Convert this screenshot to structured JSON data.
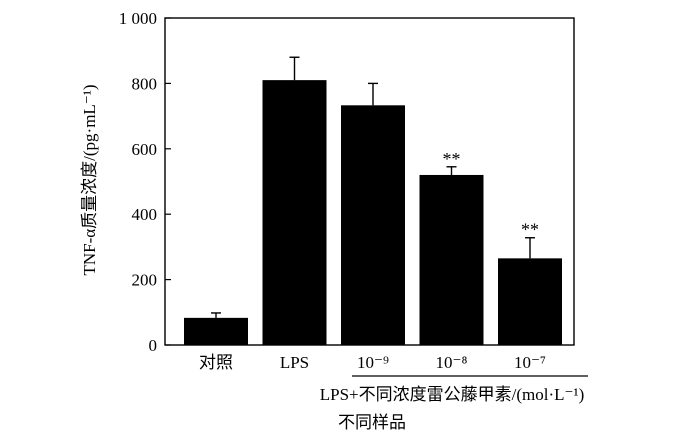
{
  "chart_data": {
    "type": "bar",
    "title": "",
    "ylabel": "TNF-α质量浓度/(pg·mL⁻¹)",
    "xlabel": "不同样品",
    "group_label": "LPS+不同浓度雷公藤甲素/(mol·L⁻¹)",
    "ylim": [
      0,
      1000
    ],
    "yticks": [
      0,
      200,
      400,
      600,
      800,
      1000
    ],
    "ytick_labels": [
      "0",
      "200",
      "400",
      "600",
      "800",
      "1 000"
    ],
    "categories": [
      "对照",
      "LPS",
      "10⁻⁹",
      "10⁻⁸",
      "10⁻⁷"
    ],
    "values": [
      83,
      810,
      733,
      520,
      265
    ],
    "errors": [
      15,
      70,
      67,
      25,
      63
    ],
    "annotations": [
      "",
      "",
      "",
      "**",
      "**"
    ],
    "bar_color": "#000000",
    "grid": false,
    "legend": "none"
  }
}
